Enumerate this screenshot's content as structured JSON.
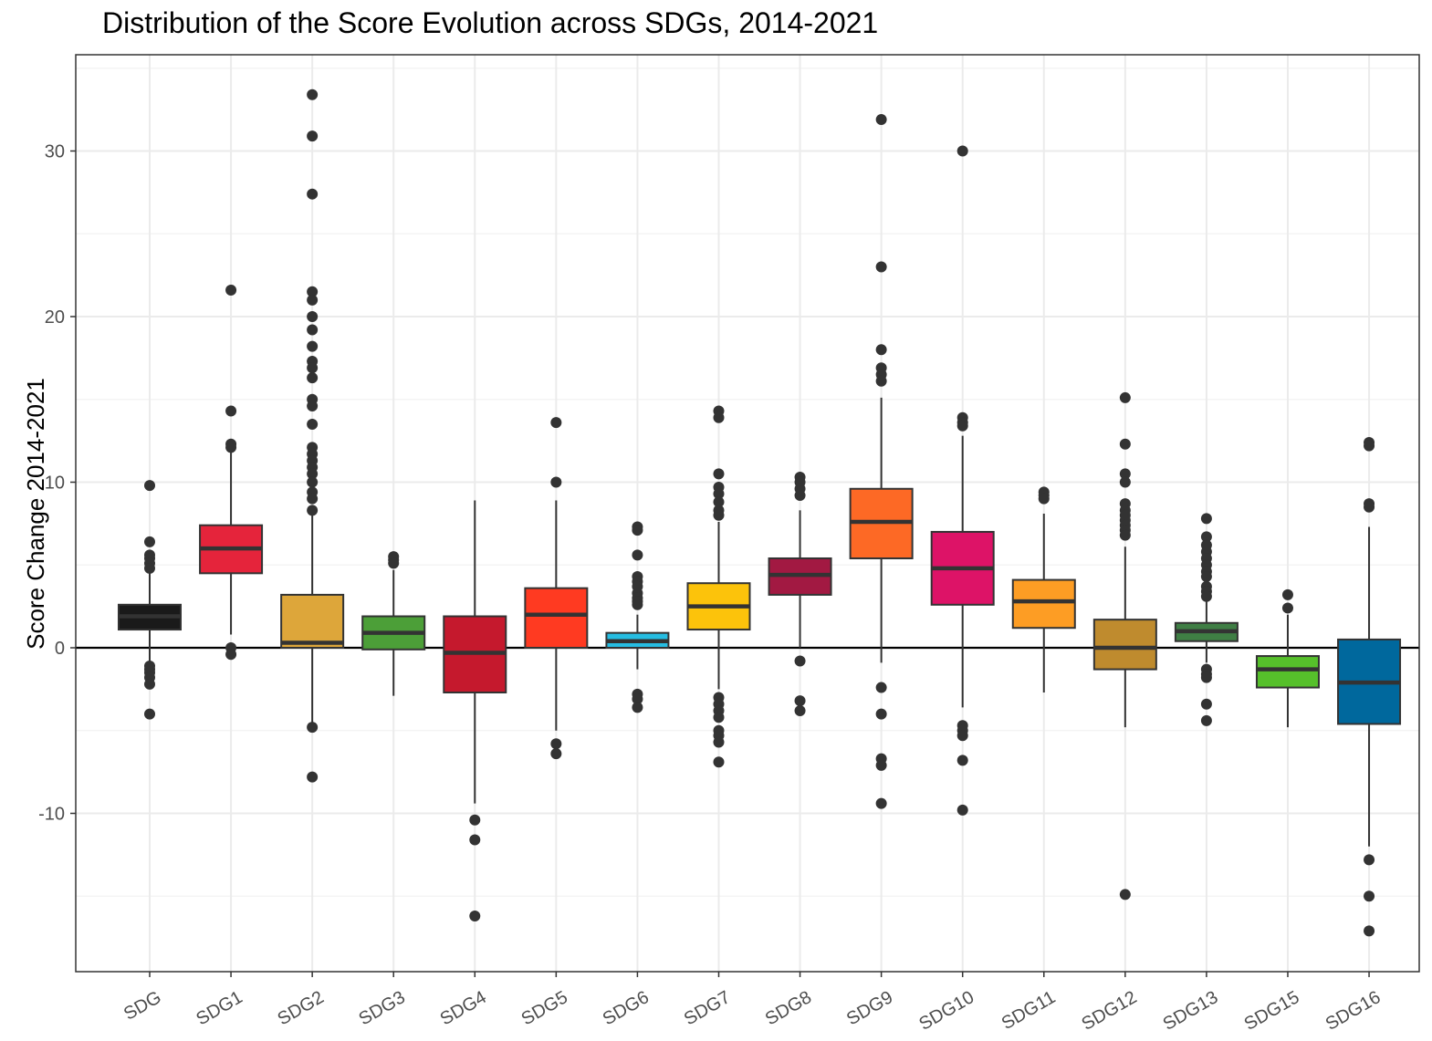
{
  "chart_data": {
    "type": "boxplot",
    "title": "Distribution of the Score Evolution across SDGs, 2014-2021",
    "xlabel": "",
    "ylabel": "Score Change 2014-2021",
    "ylim": [
      -18.6,
      35.5
    ],
    "y_ticks": [
      -10,
      0,
      10,
      20,
      30
    ],
    "y_tick_labels": [
      "-10",
      "0",
      "10",
      "20",
      "30"
    ],
    "grid": true,
    "reference_line_y": 0,
    "categories": [
      "SDG",
      "SDG1",
      "SDG2",
      "SDG3",
      "SDG4",
      "SDG5",
      "SDG6",
      "SDG7",
      "SDG8",
      "SDG9",
      "SDG10",
      "SDG11",
      "SDG12",
      "SDG13",
      "SDG15",
      "SDG16"
    ],
    "boxes": [
      {
        "category": "SDG",
        "color": "#1a1a1a",
        "whisker_low": -0.9,
        "q1": 1.1,
        "median": 1.9,
        "q3": 2.6,
        "whisker_high": 4.5,
        "outliers": [
          9.8,
          6.4,
          5.6,
          5.4,
          5.1,
          4.8,
          -1.1,
          -1.3,
          -1.5,
          -1.8,
          -2.2,
          -4.0
        ]
      },
      {
        "category": "SDG1",
        "color": "#e5243b",
        "whisker_low": 0.8,
        "q1": 4.5,
        "median": 6.0,
        "q3": 7.4,
        "whisker_high": 11.9,
        "outliers": [
          21.6,
          14.3,
          12.3,
          12.1,
          0.0,
          -0.4
        ]
      },
      {
        "category": "SDG2",
        "color": "#dda63a",
        "whisker_low": -4.5,
        "q1": 0.0,
        "median": 0.3,
        "q3": 3.2,
        "whisker_high": 8.0,
        "outliers": [
          33.4,
          30.9,
          27.4,
          21.5,
          21.0,
          20.0,
          19.2,
          18.2,
          17.3,
          16.9,
          16.3,
          15.0,
          14.6,
          13.5,
          12.1,
          11.7,
          11.3,
          10.9,
          10.5,
          10.0,
          9.4,
          9.0,
          8.3,
          -4.8,
          -7.8
        ]
      },
      {
        "category": "SDG3",
        "color": "#4c9f38",
        "whisker_low": -2.9,
        "q1": -0.1,
        "median": 0.9,
        "q3": 1.9,
        "whisker_high": 4.7,
        "outliers": [
          5.5,
          5.3,
          5.1
        ]
      },
      {
        "category": "SDG4",
        "color": "#c5192d",
        "whisker_low": -9.4,
        "q1": -2.7,
        "median": -0.3,
        "q3": 1.9,
        "whisker_high": 8.9,
        "outliers": [
          -10.4,
          -11.6,
          -16.2
        ]
      },
      {
        "category": "SDG5",
        "color": "#ff3a21",
        "whisker_low": -5.0,
        "q1": 0.0,
        "median": 2.0,
        "q3": 3.6,
        "whisker_high": 8.9,
        "outliers": [
          13.6,
          10.0,
          -5.8,
          -6.4
        ]
      },
      {
        "category": "SDG6",
        "color": "#26bde2",
        "whisker_low": -1.3,
        "q1": 0.0,
        "median": 0.4,
        "q3": 0.9,
        "whisker_high": 2.0,
        "outliers": [
          7.3,
          7.1,
          5.6,
          4.3,
          4.0,
          3.7,
          3.3,
          3.0,
          2.8,
          2.6,
          -2.8,
          -3.1,
          -3.6
        ]
      },
      {
        "category": "SDG7",
        "color": "#fcc30b",
        "whisker_low": -2.5,
        "q1": 1.1,
        "median": 2.5,
        "q3": 3.9,
        "whisker_high": 7.6,
        "outliers": [
          14.3,
          13.9,
          10.5,
          9.7,
          9.3,
          8.8,
          8.3,
          8.0,
          -3.0,
          -3.4,
          -3.8,
          -4.2,
          -5.0,
          -5.3,
          -5.7,
          -6.9
        ]
      },
      {
        "category": "SDG8",
        "color": "#a21942",
        "whisker_low": 0.0,
        "q1": 3.2,
        "median": 4.4,
        "q3": 5.4,
        "whisker_high": 8.3,
        "outliers": [
          10.3,
          10.0,
          9.6,
          9.2,
          -0.8,
          -3.2,
          -3.8
        ]
      },
      {
        "category": "SDG9",
        "color": "#fd6925",
        "whisker_low": -0.9,
        "q1": 5.4,
        "median": 7.6,
        "q3": 9.6,
        "whisker_high": 15.1,
        "outliers": [
          31.9,
          23.0,
          18.0,
          16.9,
          16.5,
          16.1,
          -2.4,
          -4.0,
          -6.7,
          -7.1,
          -9.4
        ]
      },
      {
        "category": "SDG10",
        "color": "#dd1367",
        "whisker_low": -3.6,
        "q1": 2.6,
        "median": 4.8,
        "q3": 7.0,
        "whisker_high": 12.8,
        "outliers": [
          30.0,
          13.9,
          13.6,
          13.4,
          -4.7,
          -5.0,
          -5.3,
          -6.8,
          -9.8
        ]
      },
      {
        "category": "SDG11",
        "color": "#fd9d24",
        "whisker_low": -2.7,
        "q1": 1.2,
        "median": 2.8,
        "q3": 4.1,
        "whisker_high": 8.1,
        "outliers": [
          9.4,
          9.2,
          9.0
        ]
      },
      {
        "category": "SDG12",
        "color": "#bf8b2e",
        "whisker_low": -4.8,
        "q1": -1.3,
        "median": 0.0,
        "q3": 1.7,
        "whisker_high": 6.1,
        "outliers": [
          15.1,
          12.3,
          10.5,
          10.0,
          8.7,
          8.3,
          8.0,
          7.7,
          7.4,
          7.1,
          6.8,
          -14.9
        ]
      },
      {
        "category": "SDG13",
        "color": "#3f7e44",
        "whisker_low": -0.9,
        "q1": 0.4,
        "median": 1.0,
        "q3": 1.5,
        "whisker_high": 2.9,
        "outliers": [
          7.8,
          6.7,
          6.2,
          5.8,
          5.4,
          5.0,
          4.6,
          4.3,
          3.7,
          3.4,
          3.1,
          -1.3,
          -1.6,
          -1.8,
          -3.4,
          -4.4
        ]
      },
      {
        "category": "SDG15",
        "color": "#56c02b",
        "whisker_low": -4.8,
        "q1": -2.4,
        "median": -1.3,
        "q3": -0.5,
        "whisker_high": 2.0,
        "outliers": [
          3.2,
          2.4
        ]
      },
      {
        "category": "SDG16",
        "color": "#00689d",
        "whisker_low": -12.0,
        "q1": -4.6,
        "median": -2.1,
        "q3": 0.5,
        "whisker_high": 7.3,
        "outliers": [
          12.4,
          12.2,
          8.7,
          8.5,
          -12.8,
          -15.0,
          -17.1
        ]
      }
    ]
  }
}
